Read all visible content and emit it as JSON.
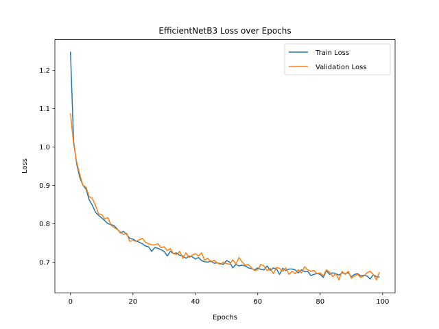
{
  "chart_data": {
    "type": "line",
    "title": "EfficientNetB3 Loss over Epochs",
    "xlabel": "Epochs",
    "ylabel": "Loss",
    "xlim": [
      -5,
      104
    ],
    "ylim": [
      0.62,
      1.28
    ],
    "xticks": [
      0,
      20,
      40,
      60,
      80,
      100
    ],
    "yticks": [
      0.7,
      0.8,
      0.9,
      1.0,
      1.1,
      1.2
    ],
    "xtick_labels": [
      "0",
      "20",
      "40",
      "60",
      "80",
      "100"
    ],
    "ytick_labels": [
      "0.7",
      "0.8",
      "0.9",
      "1.0",
      "1.1",
      "1.2"
    ],
    "grid": false,
    "legend_position": "top-right",
    "x": [
      0,
      1,
      2,
      3,
      4,
      5,
      6,
      7,
      8,
      9,
      10,
      11,
      12,
      13,
      14,
      15,
      16,
      17,
      18,
      19,
      20,
      21,
      22,
      23,
      24,
      25,
      26,
      27,
      28,
      29,
      30,
      31,
      32,
      33,
      34,
      35,
      36,
      37,
      38,
      39,
      40,
      41,
      42,
      43,
      44,
      45,
      46,
      47,
      48,
      49,
      50,
      51,
      52,
      53,
      54,
      55,
      56,
      57,
      58,
      59,
      60,
      61,
      62,
      63,
      64,
      65,
      66,
      67,
      68,
      69,
      70,
      71,
      72,
      73,
      74,
      75,
      76,
      77,
      78,
      79,
      80,
      81,
      82,
      83,
      84,
      85,
      86,
      87,
      88,
      89,
      90,
      91,
      92,
      93,
      94,
      95,
      96,
      97,
      98,
      99
    ],
    "series": [
      {
        "name": "Train Loss",
        "color": "#1f77b4",
        "values": [
          1.248,
          1.015,
          0.955,
          0.92,
          0.9,
          0.89,
          0.862,
          0.848,
          0.83,
          0.822,
          0.815,
          0.808,
          0.8,
          0.798,
          0.795,
          0.786,
          0.776,
          0.78,
          0.772,
          0.762,
          0.76,
          0.755,
          0.752,
          0.748,
          0.742,
          0.74,
          0.728,
          0.738,
          0.736,
          0.732,
          0.728,
          0.716,
          0.728,
          0.722,
          0.724,
          0.718,
          0.716,
          0.71,
          0.716,
          0.714,
          0.708,
          0.712,
          0.704,
          0.701,
          0.7,
          0.703,
          0.697,
          0.698,
          0.696,
          0.694,
          0.704,
          0.7,
          0.685,
          0.694,
          0.69,
          0.692,
          0.69,
          0.685,
          0.683,
          0.68,
          0.685,
          0.681,
          0.68,
          0.69,
          0.678,
          0.685,
          0.682,
          0.668,
          0.684,
          0.678,
          0.682,
          0.682,
          0.68,
          0.672,
          0.68,
          0.675,
          0.676,
          0.665,
          0.668,
          0.67,
          0.668,
          0.66,
          0.678,
          0.668,
          0.672,
          0.67,
          0.666,
          0.672,
          0.67,
          0.672,
          0.662,
          0.668,
          0.67,
          0.664,
          0.666,
          0.664,
          0.656,
          0.667,
          0.662,
          0.661
        ]
      },
      {
        "name": "Validation Loss",
        "color": "#ff7f0e",
        "values": [
          1.088,
          1.008,
          0.96,
          0.928,
          0.9,
          0.895,
          0.87,
          0.866,
          0.848,
          0.826,
          0.824,
          0.812,
          0.816,
          0.796,
          0.79,
          0.785,
          0.778,
          0.772,
          0.775,
          0.754,
          0.756,
          0.754,
          0.758,
          0.762,
          0.752,
          0.748,
          0.745,
          0.745,
          0.748,
          0.738,
          0.74,
          0.73,
          0.735,
          0.722,
          0.72,
          0.728,
          0.71,
          0.724,
          0.712,
          0.718,
          0.722,
          0.716,
          0.724,
          0.705,
          0.71,
          0.7,
          0.705,
          0.698,
          0.694,
          0.7,
          0.696,
          0.694,
          0.706,
          0.695,
          0.712,
          0.7,
          0.692,
          0.694,
          0.685,
          0.678,
          0.68,
          0.694,
          0.69,
          0.678,
          0.684,
          0.67,
          0.686,
          0.684,
          0.676,
          0.685,
          0.668,
          0.676,
          0.67,
          0.68,
          0.672,
          0.688,
          0.68,
          0.676,
          0.678,
          0.67,
          0.672,
          0.664,
          0.68,
          0.674,
          0.662,
          0.67,
          0.654,
          0.676,
          0.668,
          0.676,
          0.658,
          0.664,
          0.668,
          0.66,
          0.664,
          0.672,
          0.676,
          0.668,
          0.654,
          0.674
        ]
      }
    ]
  }
}
